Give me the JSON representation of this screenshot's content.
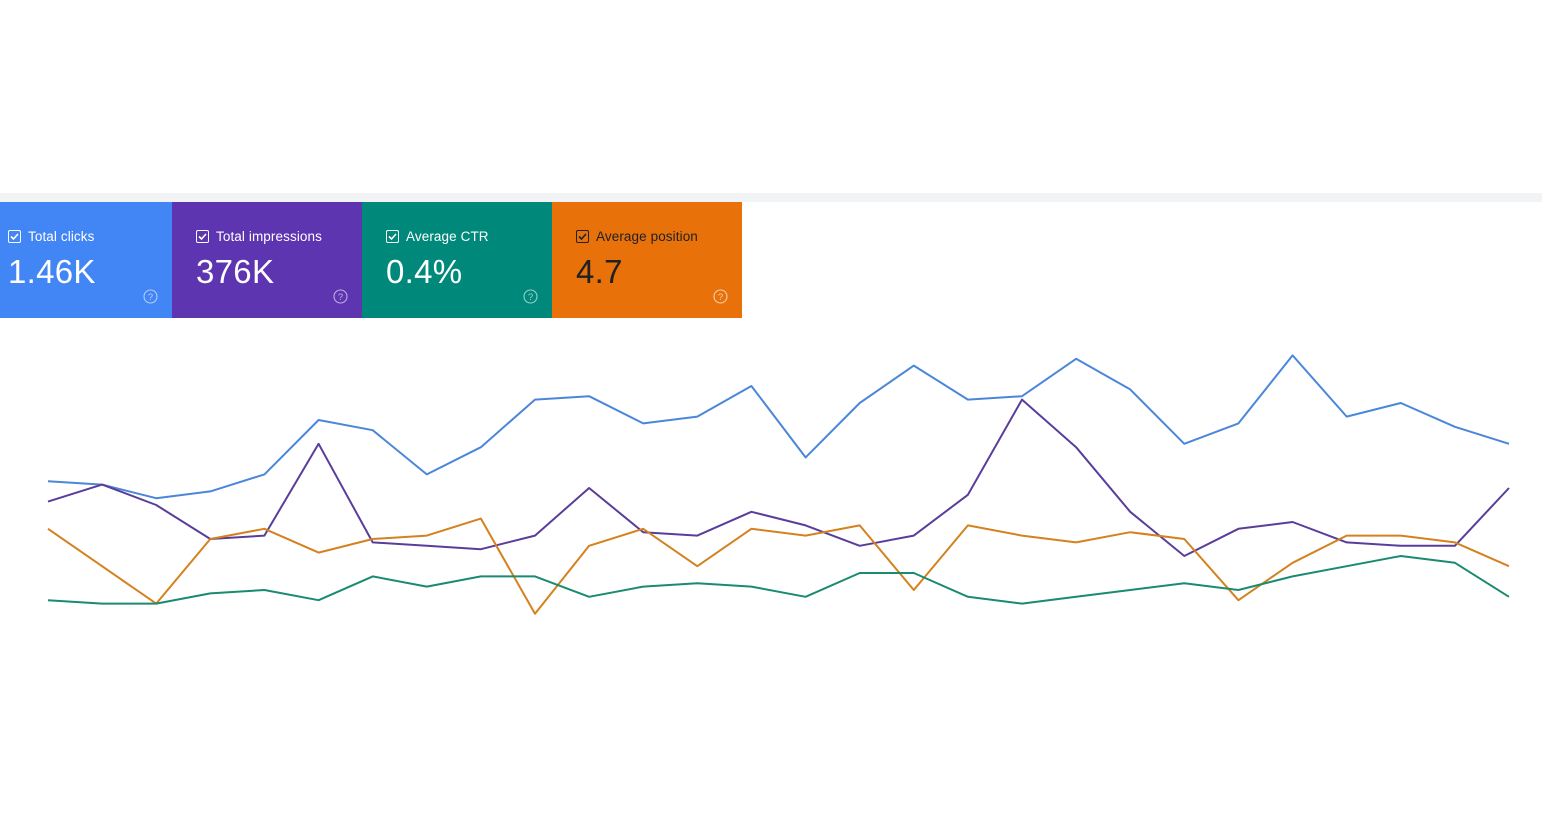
{
  "metrics": [
    {
      "label": "Total clicks",
      "value": "1.46K",
      "color": "#4285f4",
      "text_color": "#ffffff",
      "checked": true,
      "help_icon": "help-circle-icon"
    },
    {
      "label": "Total impressions",
      "value": "376K",
      "color": "#5e35b1",
      "text_color": "#ffffff",
      "checked": true,
      "help_icon": "help-circle-icon"
    },
    {
      "label": "Average CTR",
      "value": "0.4%",
      "color": "#00897b",
      "text_color": "#ffffff",
      "checked": true,
      "help_icon": "help-circle-icon"
    },
    {
      "label": "Average position",
      "value": "4.7",
      "color": "#e8710a",
      "text_color": "#202124",
      "checked": true,
      "help_icon": "help-circle-icon"
    }
  ],
  "chart_data": {
    "type": "line",
    "x": [
      1,
      2,
      3,
      4,
      5,
      6,
      7,
      8,
      9,
      10,
      11,
      12,
      13,
      14,
      15,
      16,
      17,
      18,
      19,
      20,
      21,
      22,
      23,
      24,
      25,
      26,
      27,
      28
    ],
    "ylim": [
      0,
      100
    ],
    "grid": false,
    "series": [
      {
        "color": "#4a87d9",
        "values": [
          52,
          51,
          47,
          49,
          54,
          70,
          67,
          54,
          62,
          76,
          77,
          69,
          71,
          80,
          59,
          75,
          86,
          76,
          77,
          88,
          79,
          63,
          69,
          89,
          71,
          75,
          68,
          63
        ]
      },
      {
        "color": "#5a3d9a",
        "values": [
          46,
          51,
          45,
          35,
          36,
          63,
          34,
          33,
          32,
          36,
          50,
          37,
          36,
          43,
          39,
          33,
          36,
          48,
          76,
          62,
          43,
          30,
          38,
          40,
          34,
          33,
          33,
          50
        ]
      },
      {
        "color": "#d4811e",
        "values": [
          38,
          27,
          16,
          35,
          38,
          31,
          35,
          36,
          41,
          13,
          33,
          38,
          27,
          38,
          36,
          39,
          20,
          39,
          36,
          34,
          37,
          35,
          17,
          28,
          36,
          36,
          34,
          27
        ]
      },
      {
        "color": "#1a8a70",
        "values": [
          17,
          16,
          16,
          19,
          20,
          17,
          24,
          21,
          24,
          24,
          18,
          21,
          22,
          21,
          18,
          25,
          25,
          18,
          16,
          18,
          20,
          22,
          20,
          24,
          27,
          30,
          28,
          18
        ]
      }
    ]
  }
}
